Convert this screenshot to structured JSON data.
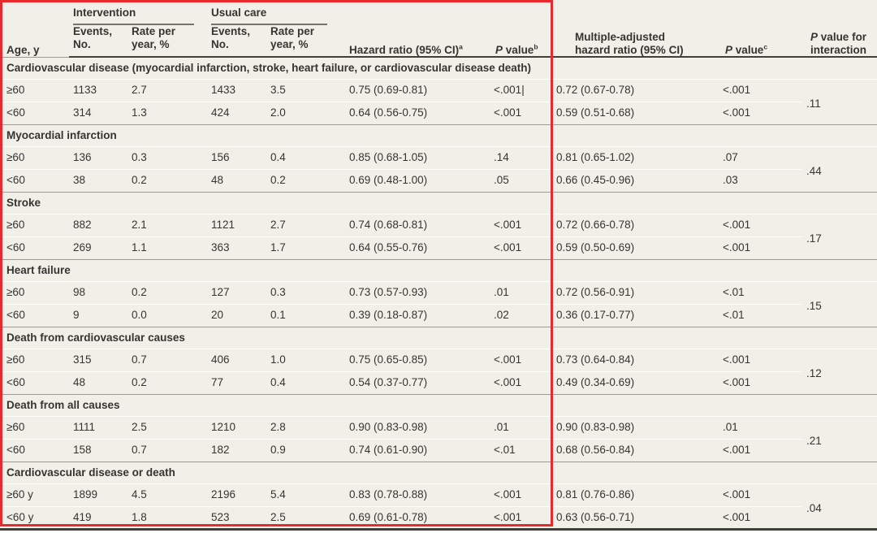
{
  "colors": {
    "background": "#f0efe8",
    "annotation_red": "#e8292d",
    "rule_dark": "#403f3a",
    "rule_gray": "#9c9a91",
    "rule_light": "#fdfdf9",
    "text": "#363430"
  },
  "header": {
    "age_label": "Age, y",
    "group_intervention": "Intervention",
    "group_usual_care": "Usual care",
    "sub_events": "Events,\nNo.",
    "sub_rate": "Rate per\nyear, %",
    "hazard_ratio": {
      "text": "Hazard ratio (95% CI)",
      "sup": "a"
    },
    "p_value_b": {
      "p": "P",
      "text": " value",
      "sup": "b"
    },
    "multi_adjusted": {
      "line1": "Multiple-adjusted",
      "line2": "hazard ratio (95% CI)"
    },
    "p_value_c": {
      "p": "P",
      "text": " value",
      "sup": "c"
    },
    "p_interaction": {
      "p": "P",
      "line1": " value for",
      "line2": "interaction"
    }
  },
  "sections": [
    {
      "title": "Cardiovascular disease (myocardial infarction, stroke, heart failure, or cardiovascular disease death)",
      "interaction_p": ".11",
      "rows": [
        {
          "age": "≥60",
          "int_events": "1133",
          "int_rate": "2.7",
          "uc_events": "1433",
          "uc_rate": "3.5",
          "hr": "0.75 (0.69-0.81)",
          "p": "<.001|",
          "adj_hr": "0.72 (0.67-0.78)",
          "adj_p": "<.001"
        },
        {
          "age": "<60",
          "int_events": "314",
          "int_rate": "1.3",
          "uc_events": "424",
          "uc_rate": "2.0",
          "hr": "0.64 (0.56-0.75)",
          "p": "<.001",
          "adj_hr": "0.59 (0.51-0.68)",
          "adj_p": "<.001"
        }
      ]
    },
    {
      "title": "Myocardial infarction",
      "interaction_p": ".44",
      "rows": [
        {
          "age": "≥60",
          "int_events": "136",
          "int_rate": "0.3",
          "uc_events": "156",
          "uc_rate": "0.4",
          "hr": "0.85 (0.68-1.05)",
          "p": ".14",
          "adj_hr": "0.81 (0.65-1.02)",
          "adj_p": ".07"
        },
        {
          "age": "<60",
          "int_events": "38",
          "int_rate": "0.2",
          "uc_events": "48",
          "uc_rate": "0.2",
          "hr": "0.69 (0.48-1.00)",
          "p": ".05",
          "adj_hr": "0.66 (0.45-0.96)",
          "adj_p": ".03"
        }
      ]
    },
    {
      "title": "Stroke",
      "interaction_p": ".17",
      "rows": [
        {
          "age": "≥60",
          "int_events": "882",
          "int_rate": "2.1",
          "uc_events": "1121",
          "uc_rate": "2.7",
          "hr": "0.74 (0.68-0.81)",
          "p": "<.001",
          "adj_hr": "0.72 (0.66-0.78)",
          "adj_p": "<.001"
        },
        {
          "age": "<60",
          "int_events": "269",
          "int_rate": "1.1",
          "uc_events": "363",
          "uc_rate": "1.7",
          "hr": "0.64 (0.55-0.76)",
          "p": "<.001",
          "adj_hr": "0.59 (0.50-0.69)",
          "adj_p": "<.001"
        }
      ]
    },
    {
      "title": "Heart failure",
      "interaction_p": ".15",
      "rows": [
        {
          "age": "≥60",
          "int_events": "98",
          "int_rate": "0.2",
          "uc_events": "127",
          "uc_rate": "0.3",
          "hr": "0.73 (0.57-0.93)",
          "p": ".01",
          "adj_hr": "0.72 (0.56-0.91)",
          "adj_p": "<.01"
        },
        {
          "age": "<60",
          "int_events": "9",
          "int_rate": "0.0",
          "uc_events": "20",
          "uc_rate": "0.1",
          "hr": "0.39 (0.18-0.87)",
          "p": ".02",
          "adj_hr": "0.36 (0.17-0.77)",
          "adj_p": "<.01"
        }
      ]
    },
    {
      "title": "Death from cardiovascular causes",
      "interaction_p": ".12",
      "rows": [
        {
          "age": "≥60",
          "int_events": "315",
          "int_rate": "0.7",
          "uc_events": "406",
          "uc_rate": "1.0",
          "hr": "0.75 (0.65-0.85)",
          "p": "<.001",
          "adj_hr": "0.73 (0.64-0.84)",
          "adj_p": "<.001"
        },
        {
          "age": "<60",
          "int_events": "48",
          "int_rate": "0.2",
          "uc_events": "77",
          "uc_rate": "0.4",
          "hr": "0.54 (0.37-0.77)",
          "p": "<.001",
          "adj_hr": "0.49 (0.34-0.69)",
          "adj_p": "<.001"
        }
      ]
    },
    {
      "title": "Death from all causes",
      "interaction_p": ".21",
      "rows": [
        {
          "age": "≥60",
          "int_events": "1111",
          "int_rate": "2.5",
          "uc_events": "1210",
          "uc_rate": "2.8",
          "hr": "0.90 (0.83-0.98)",
          "p": ".01",
          "adj_hr": "0.90 (0.83-0.98)",
          "adj_p": ".01"
        },
        {
          "age": "<60",
          "int_events": "158",
          "int_rate": "0.7",
          "uc_events": "182",
          "uc_rate": "0.9",
          "hr": "0.74 (0.61-0.90)",
          "p": "<.01",
          "adj_hr": "0.68 (0.56-0.84)",
          "adj_p": "<.001"
        }
      ]
    },
    {
      "title": "Cardiovascular disease or death",
      "interaction_p": ".04",
      "rows": [
        {
          "age": "≥60 y",
          "int_events": "1899",
          "int_rate": "4.5",
          "uc_events": "2196",
          "uc_rate": "5.4",
          "hr": "0.83 (0.78-0.88)",
          "p": "<.001",
          "adj_hr": "0.81 (0.76-0.86)",
          "adj_p": "<.001"
        },
        {
          "age": "<60 y",
          "int_events": "419",
          "int_rate": "1.8",
          "uc_events": "523",
          "uc_rate": "2.5",
          "hr": "0.69 (0.61-0.78)",
          "p": "<.001",
          "adj_hr": "0.63 (0.56-0.71)",
          "adj_p": "<.001"
        }
      ]
    }
  ]
}
